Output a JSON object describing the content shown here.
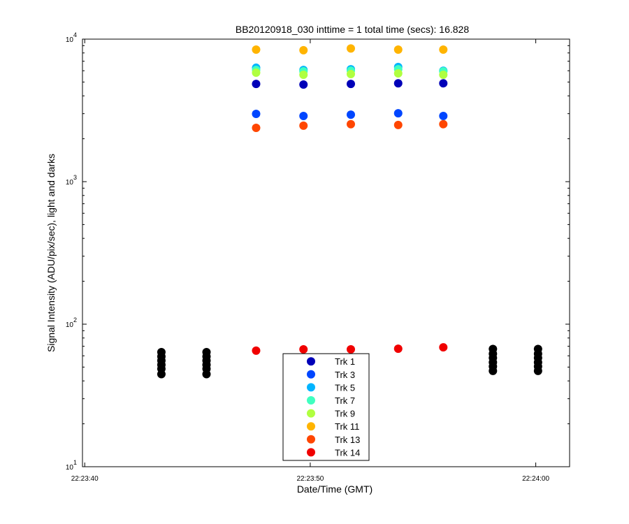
{
  "chart_data": {
    "type": "scatter",
    "title": "BB20120918_030 inttime = 1 total time (secs): 16.828",
    "x_label": "Date/Time (GMT)",
    "y_label": "Signal Intensity (ADU/pix/sec), light and darks",
    "y_scale": "log",
    "xlim": [
      "22:23:39.9",
      "22:24:01.5"
    ],
    "xticks": [
      "22:23:40",
      "22:23:50",
      "22:24:00"
    ],
    "ylim": [
      10,
      10000
    ],
    "yticks": [
      {
        "value": 10,
        "label": "10",
        "exponent": "1"
      },
      {
        "value": 100,
        "label": "10",
        "exponent": "2"
      },
      {
        "value": 1000,
        "label": "10",
        "exponent": "3"
      },
      {
        "value": 10000,
        "label": "10",
        "exponent": "4"
      }
    ],
    "legend": "south",
    "series": [
      {
        "name": "Trk 1",
        "color": "#0000b8",
        "x": [
          "22:23:47.6",
          "22:23:49.7",
          "22:23:51.8",
          "22:23:53.9",
          "22:23:55.9"
        ],
        "values": [
          4850,
          4800,
          4850,
          4900,
          4900
        ]
      },
      {
        "name": "Trk 3",
        "color": "#0046ff",
        "x": [
          "22:23:47.6",
          "22:23:49.7",
          "22:23:51.8",
          "22:23:53.9",
          "22:23:55.9"
        ],
        "values": [
          2990,
          2890,
          2950,
          3020,
          2890
        ]
      },
      {
        "name": "Trk 5",
        "color": "#00b4ff",
        "x": [
          "22:23:47.6",
          "22:23:49.7",
          "22:23:51.8",
          "22:23:53.9",
          "22:23:55.9"
        ],
        "values": [
          6300,
          6080,
          6150,
          6380,
          6000
        ]
      },
      {
        "name": "Trk 7",
        "color": "#40ffc0",
        "x": [
          "22:23:47.6",
          "22:23:49.7",
          "22:23:51.8",
          "22:23:53.9",
          "22:23:55.9"
        ],
        "values": [
          6080,
          5940,
          6000,
          6150,
          5940
        ]
      },
      {
        "name": "Trk 9",
        "color": "#b0ff40",
        "x": [
          "22:23:47.6",
          "22:23:49.7",
          "22:23:51.8",
          "22:23:53.9",
          "22:23:55.9"
        ],
        "values": [
          5820,
          5620,
          5690,
          5750,
          5620
        ]
      },
      {
        "name": "Trk 11",
        "color": "#ffb400",
        "x": [
          "22:23:47.6",
          "22:23:49.7",
          "22:23:51.8",
          "22:23:53.9",
          "22:23:55.9"
        ],
        "values": [
          8440,
          8360,
          8600,
          8440,
          8440
        ]
      },
      {
        "name": "Trk 13",
        "color": "#ff4600",
        "x": [
          "22:23:47.6",
          "22:23:49.7",
          "22:23:51.8",
          "22:23:53.9",
          "22:23:55.9"
        ],
        "values": [
          2385,
          2470,
          2530,
          2500,
          2530
        ]
      },
      {
        "name": "Trk 14",
        "color": "#f00000",
        "x": [
          "22:23:47.6",
          "22:23:49.7",
          "22:23:51.8",
          "22:23:53.9",
          "22:23:55.9"
        ],
        "values": [
          65.2,
          66.6,
          66.6,
          67.3,
          68.8
        ]
      },
      {
        "color": "#000000",
        "x": [
          "22:23:43.4",
          "22:23:43.4",
          "22:23:43.4",
          "22:23:43.4",
          "22:23:43.4",
          "22:23:43.4",
          "22:23:45.4",
          "22:23:45.4",
          "22:23:45.4",
          "22:23:45.4",
          "22:23:45.4",
          "22:23:45.4",
          "22:23:58.1",
          "22:23:58.1",
          "22:23:58.1",
          "22:23:58.1",
          "22:23:58.1",
          "22:23:58.1",
          "22:24:00.1",
          "22:24:00.1",
          "22:24:00.1",
          "22:24:00.1",
          "22:24:00.1",
          "22:24:00.1"
        ],
        "values": [
          63.7,
          59.3,
          55.5,
          51.9,
          48.6,
          44.6,
          63.7,
          59.3,
          55.5,
          51.9,
          48.6,
          44.6,
          67,
          62,
          58,
          54,
          50.5,
          47,
          67,
          62,
          58,
          54,
          50.5,
          47
        ]
      }
    ]
  }
}
